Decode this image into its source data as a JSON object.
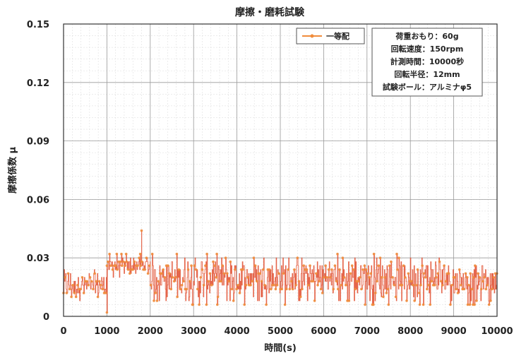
{
  "chart_data": {
    "type": "line",
    "title": "摩擦・磨耗試験",
    "xlabel": "時間(s)",
    "ylabel": "摩擦係数 μ",
    "xlim": [
      0,
      10000
    ],
    "ylim": [
      0,
      0.15
    ],
    "xticks": [
      "0",
      "1000",
      "2000",
      "3000",
      "4000",
      "5000",
      "6000",
      "7000",
      "8000",
      "9000",
      "10000"
    ],
    "yticks": [
      "0",
      "0.03",
      "0.06",
      "0.09",
      "0.12",
      "0.15"
    ],
    "grid": true,
    "minor_grid": true,
    "legend_position": "top-right",
    "series": [
      {
        "name": "一等配",
        "color": "#f08c3c",
        "trace_color": "#e14b2d",
        "segments": [
          {
            "x": [
              0,
              1000
            ],
            "range": [
              0.008,
              0.024
            ],
            "mean": 0.016
          },
          {
            "x": [
              1000,
              2000
            ],
            "range": [
              0.02,
              0.032
            ],
            "mean": 0.026
          },
          {
            "x": [
              2000,
              9000
            ],
            "range": [
              0.006,
              0.032
            ],
            "mean": 0.02
          },
          {
            "x": [
              9000,
              10000
            ],
            "range": [
              0.006,
              0.026
            ],
            "mean": 0.018
          }
        ],
        "peak": {
          "x": 1800,
          "y": 0.044
        }
      }
    ],
    "conditions": [
      "荷重おもり：60g",
      "回転速度：150rpm",
      "計測時間：10000秒",
      "回転半径：12mm",
      "試験ボール：アルミナφ5"
    ]
  }
}
